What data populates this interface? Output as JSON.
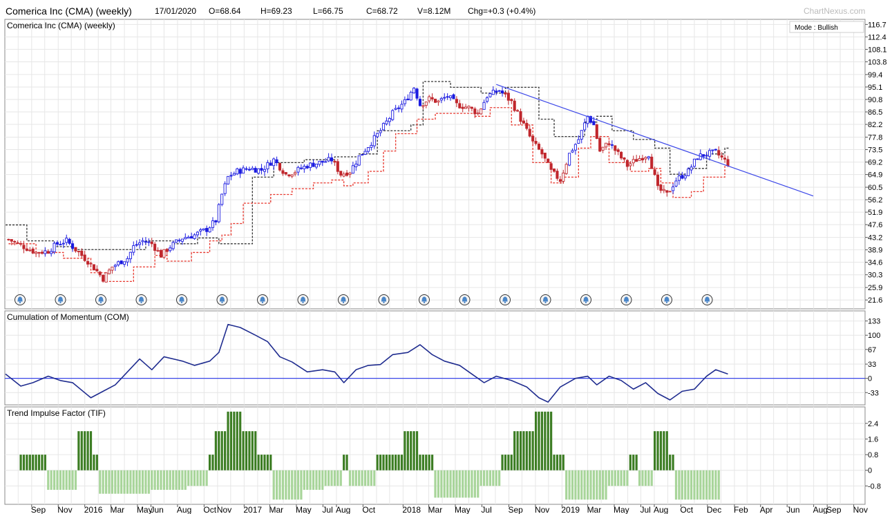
{
  "header": {
    "title": "Comerica Inc (CMA) (weekly)",
    "date": "17/01/2020",
    "open": "O=68.64",
    "high": "H=69.23",
    "low": "L=66.75",
    "close": "C=68.72",
    "volume": "V=8.12M",
    "change": "Chg=+0.3 (+0.4%)",
    "brand": "ChartNexus.com"
  },
  "mode_label": "Mode : Bullish",
  "colors": {
    "up": "#1a1ae0",
    "down": "#c0272d",
    "trendline": "#3a46e8",
    "com_line": "#1f2c8f",
    "tif_pos": "#3c7d23",
    "tif_neg": "#a8d59a",
    "stop_red": "#e8352b",
    "stop_black": "#333333",
    "alert_icon": "#4a86c8"
  },
  "x_axis_labels": [
    "Sep",
    "Nov",
    "2016",
    "Mar",
    "May",
    "Jun",
    "Aug",
    "Oct",
    "Nov",
    "2017",
    "Mar",
    "May",
    "Jul",
    "Aug",
    "Oct",
    "2018",
    "Mar",
    "May",
    "Jul",
    "Sep",
    "Nov",
    "2019",
    "Mar",
    "May",
    "Jul",
    "Aug",
    "Oct",
    "Dec",
    "Feb",
    "Apr",
    "Jun",
    "Aug",
    "Sep",
    "Nov"
  ],
  "alert_icon_count": 18,
  "chart_data": [
    {
      "type": "candlestick",
      "title": "Comerica Inc (CMA) (weekly)",
      "y_ticks": [
        116.7,
        112.4,
        108.1,
        103.8,
        99.4,
        95.1,
        90.8,
        86.5,
        82.2,
        77.8,
        73.5,
        69.2,
        64.9,
        60.5,
        56.2,
        51.9,
        47.6,
        43.2,
        38.9,
        34.6,
        30.3,
        25.9,
        21.6
      ],
      "ylim": [
        19.5,
        117.5
      ],
      "x_range": [
        "2015-07",
        "2020-11"
      ],
      "close_path": [
        [
          "2015-07-10",
          42.5
        ],
        [
          "2015-08-14",
          40
        ],
        [
          "2015-09-11",
          38
        ],
        [
          "2015-10-09",
          38.5
        ],
        [
          "2015-10-30",
          41
        ],
        [
          "2015-11-20",
          42
        ],
        [
          "2015-12-11",
          39
        ],
        [
          "2016-01-08",
          35
        ],
        [
          "2016-01-29",
          31.5
        ],
        [
          "2016-02-12",
          29
        ],
        [
          "2016-03-04",
          33
        ],
        [
          "2016-03-25",
          35
        ],
        [
          "2016-04-08",
          36
        ],
        [
          "2016-04-22",
          40
        ],
        [
          "2016-05-13",
          42
        ],
        [
          "2016-06-03",
          41
        ],
        [
          "2016-06-24",
          37
        ],
        [
          "2016-07-15",
          40
        ],
        [
          "2016-08-12",
          43
        ],
        [
          "2016-09-09",
          44
        ],
        [
          "2016-10-07",
          46
        ],
        [
          "2016-10-28",
          49
        ],
        [
          "2016-11-11",
          58
        ],
        [
          "2016-11-25",
          64
        ],
        [
          "2016-12-16",
          66
        ],
        [
          "2017-01-13",
          67
        ],
        [
          "2017-02-10",
          66.5
        ],
        [
          "2017-03-10",
          70
        ],
        [
          "2017-04-07",
          65
        ],
        [
          "2017-04-28",
          66
        ],
        [
          "2017-05-26",
          68
        ],
        [
          "2017-06-23",
          69
        ],
        [
          "2017-07-21",
          70
        ],
        [
          "2017-08-11",
          65
        ],
        [
          "2017-09-01",
          66
        ],
        [
          "2017-09-22",
          71
        ],
        [
          "2017-10-20",
          76
        ],
        [
          "2017-11-10",
          80
        ],
        [
          "2017-12-08",
          86
        ],
        [
          "2018-01-05",
          90
        ],
        [
          "2018-01-26",
          95
        ],
        [
          "2018-02-09",
          89
        ],
        [
          "2018-03-02",
          91
        ],
        [
          "2018-03-23",
          90
        ],
        [
          "2018-04-13",
          92
        ],
        [
          "2018-05-04",
          89
        ],
        [
          "2018-06-01",
          88
        ],
        [
          "2018-06-22",
          86
        ],
        [
          "2018-07-13",
          92
        ],
        [
          "2018-08-10",
          94
        ],
        [
          "2018-09-07",
          90
        ],
        [
          "2018-10-05",
          82
        ],
        [
          "2018-10-26",
          76
        ],
        [
          "2018-11-16",
          72
        ],
        [
          "2018-12-07",
          66
        ],
        [
          "2018-12-28",
          63
        ],
        [
          "2019-01-18",
          72
        ],
        [
          "2019-02-08",
          77
        ],
        [
          "2019-03-01",
          85
        ],
        [
          "2019-03-15",
          82
        ],
        [
          "2019-03-29",
          73
        ],
        [
          "2019-04-19",
          76
        ],
        [
          "2019-05-10",
          72
        ],
        [
          "2019-05-31",
          68
        ],
        [
          "2019-06-21",
          70
        ],
        [
          "2019-07-19",
          72
        ],
        [
          "2019-08-09",
          60
        ],
        [
          "2019-08-30",
          58
        ],
        [
          "2019-09-20",
          63
        ],
        [
          "2019-10-18",
          66
        ],
        [
          "2019-11-08",
          71
        ],
        [
          "2019-11-29",
          72
        ],
        [
          "2019-12-20",
          72.5
        ],
        [
          "2020-01-17",
          68.72
        ]
      ],
      "stop_red": [
        [
          "2015-07-10",
          41
        ],
        [
          "2015-09-11",
          38
        ],
        [
          "2015-11-13",
          36
        ],
        [
          "2016-01-15",
          31
        ],
        [
          "2016-02-19",
          28
        ],
        [
          "2016-04-22",
          33
        ],
        [
          "2016-06-10",
          37
        ],
        [
          "2016-07-08",
          35
        ],
        [
          "2016-09-02",
          38
        ],
        [
          "2016-10-14",
          42
        ],
        [
          "2016-11-11",
          44
        ],
        [
          "2016-12-02",
          48
        ],
        [
          "2016-12-30",
          55
        ],
        [
          "2017-03-03",
          58
        ],
        [
          "2017-04-21",
          60
        ],
        [
          "2017-06-09",
          62
        ],
        [
          "2017-07-21",
          63
        ],
        [
          "2017-08-18",
          61
        ],
        [
          "2017-09-08",
          62
        ],
        [
          "2017-10-13",
          66
        ],
        [
          "2017-11-17",
          73
        ],
        [
          "2017-12-15",
          79
        ],
        [
          "2018-02-02",
          84
        ],
        [
          "2018-03-16",
          86
        ],
        [
          "2018-06-15",
          85
        ],
        [
          "2018-07-20",
          88
        ],
        [
          "2018-09-07",
          82
        ],
        [
          "2018-10-26",
          69
        ],
        [
          "2018-12-07",
          62
        ],
        [
          "2019-01-04",
          64
        ],
        [
          "2019-02-08",
          74
        ],
        [
          "2019-03-08",
          78
        ],
        [
          "2019-04-19",
          69
        ],
        [
          "2019-06-07",
          66
        ],
        [
          "2019-07-19",
          67
        ],
        [
          "2019-08-16",
          62
        ],
        [
          "2019-09-13",
          57
        ],
        [
          "2019-10-25",
          59
        ],
        [
          "2019-11-22",
          64
        ],
        [
          "2020-01-10",
          68
        ]
      ],
      "stop_black": [
        [
          "2015-07-03",
          47.5
        ],
        [
          "2015-08-21",
          42
        ],
        [
          "2015-10-23",
          40
        ],
        [
          "2015-12-04",
          39
        ],
        [
          "2016-03-11",
          39
        ],
        [
          "2016-05-20",
          42
        ],
        [
          "2016-07-22",
          41
        ],
        [
          "2016-09-16",
          43
        ],
        [
          "2016-11-04",
          41
        ],
        [
          "2017-01-06",
          41
        ],
        [
          "2017-01-20",
          64
        ],
        [
          "2017-03-10",
          69
        ],
        [
          "2017-05-19",
          70
        ],
        [
          "2017-07-28",
          71
        ],
        [
          "2017-09-22",
          72
        ],
        [
          "2017-11-03",
          80
        ],
        [
          "2018-01-19",
          82
        ],
        [
          "2018-02-16",
          97
        ],
        [
          "2018-04-20",
          95
        ],
        [
          "2018-06-29",
          93
        ],
        [
          "2018-08-24",
          95
        ],
        [
          "2018-11-09",
          84
        ],
        [
          "2018-12-14",
          78
        ],
        [
          "2019-02-22",
          83
        ],
        [
          "2019-03-22",
          85
        ],
        [
          "2019-04-26",
          80
        ],
        [
          "2019-06-14",
          77
        ],
        [
          "2019-08-02",
          74
        ],
        [
          "2019-09-06",
          65
        ],
        [
          "2019-10-18",
          67
        ],
        [
          "2019-11-29",
          72
        ],
        [
          "2020-01-10",
          74
        ]
      ],
      "trendline": [
        [
          "2018-08-03",
          96
        ],
        [
          "2020-07-31",
          57.5
        ]
      ]
    },
    {
      "type": "line",
      "title": "Cumulation of Momentum (COM)",
      "y_ticks": [
        133,
        100,
        67,
        33,
        0,
        -33
      ],
      "ylim": [
        -55,
        150
      ],
      "reference_line": 0,
      "points": [
        [
          "2015-07-03",
          10
        ],
        [
          "2015-08-07",
          -18
        ],
        [
          "2015-09-04",
          -10
        ],
        [
          "2015-10-09",
          5
        ],
        [
          "2015-11-06",
          -5
        ],
        [
          "2015-12-04",
          -10
        ],
        [
          "2016-01-15",
          -45
        ],
        [
          "2016-02-12",
          -30
        ],
        [
          "2016-03-11",
          -15
        ],
        [
          "2016-04-08",
          15
        ],
        [
          "2016-05-06",
          45
        ],
        [
          "2016-06-03",
          20
        ],
        [
          "2016-07-01",
          50
        ],
        [
          "2016-08-12",
          40
        ],
        [
          "2016-09-09",
          30
        ],
        [
          "2016-10-14",
          40
        ],
        [
          "2016-11-04",
          60
        ],
        [
          "2016-11-25",
          125
        ],
        [
          "2016-12-23",
          118
        ],
        [
          "2017-01-27",
          100
        ],
        [
          "2017-02-24",
          85
        ],
        [
          "2017-03-24",
          50
        ],
        [
          "2017-04-21",
          38
        ],
        [
          "2017-05-26",
          15
        ],
        [
          "2017-06-30",
          20
        ],
        [
          "2017-07-28",
          15
        ],
        [
          "2017-08-18",
          -10
        ],
        [
          "2017-09-15",
          20
        ],
        [
          "2017-10-13",
          30
        ],
        [
          "2017-11-10",
          32
        ],
        [
          "2017-12-08",
          55
        ],
        [
          "2018-01-12",
          60
        ],
        [
          "2018-02-09",
          78
        ],
        [
          "2018-03-09",
          55
        ],
        [
          "2018-04-06",
          40
        ],
        [
          "2018-05-11",
          30
        ],
        [
          "2018-06-08",
          10
        ],
        [
          "2018-07-06",
          -10
        ],
        [
          "2018-08-03",
          5
        ],
        [
          "2018-09-07",
          -5
        ],
        [
          "2018-10-12",
          -20
        ],
        [
          "2018-11-09",
          -45
        ],
        [
          "2018-11-30",
          -55
        ],
        [
          "2018-12-28",
          -20
        ],
        [
          "2019-02-01",
          0
        ],
        [
          "2019-03-01",
          5
        ],
        [
          "2019-03-22",
          -15
        ],
        [
          "2019-04-19",
          5
        ],
        [
          "2019-05-17",
          -5
        ],
        [
          "2019-06-14",
          -25
        ],
        [
          "2019-07-12",
          -10
        ],
        [
          "2019-08-09",
          -35
        ],
        [
          "2019-09-06",
          -50
        ],
        [
          "2019-10-04",
          -30
        ],
        [
          "2019-11-01",
          -25
        ],
        [
          "2019-11-29",
          5
        ],
        [
          "2019-12-20",
          20
        ],
        [
          "2020-01-17",
          10
        ]
      ]
    },
    {
      "type": "bar",
      "title": "Trend Impulse Factor (TIF)",
      "y_ticks": [
        2.4,
        1.6,
        0.8,
        0.0,
        -0.8
      ],
      "ylim": [
        -1.6,
        3.1
      ],
      "segments": [
        [
          "2015-08-07",
          "2015-10-02",
          0.8
        ],
        [
          "2015-10-09",
          "2015-12-11",
          -1.0
        ],
        [
          "2015-12-18",
          "2016-01-15",
          2.0
        ],
        [
          "2016-01-22",
          "2016-01-29",
          0.8
        ],
        [
          "2016-02-05",
          "2016-05-27",
          -1.2
        ],
        [
          "2016-06-03",
          "2016-08-19",
          -1.0
        ],
        [
          "2016-08-26",
          "2016-10-07",
          -0.8
        ],
        [
          "2016-10-14",
          "2016-10-21",
          0.8
        ],
        [
          "2016-10-28",
          "2016-11-18",
          2.0
        ],
        [
          "2016-11-25",
          "2016-12-23",
          3.0
        ],
        [
          "2016-12-30",
          "2017-01-27",
          2.0
        ],
        [
          "2017-02-03",
          "2017-03-03",
          0.8
        ],
        [
          "2017-03-10",
          "2017-05-12",
          -1.5
        ],
        [
          "2017-05-19",
          "2017-06-30",
          -1.0
        ],
        [
          "2017-07-07",
          "2017-08-11",
          -0.8
        ],
        [
          "2017-08-18",
          "2017-08-25",
          0.8
        ],
        [
          "2017-09-01",
          "2017-10-27",
          -0.8
        ],
        [
          "2017-11-03",
          "2017-12-29",
          0.8
        ],
        [
          "2018-01-05",
          "2018-02-02",
          2.0
        ],
        [
          "2018-02-09",
          "2018-03-09",
          0.8
        ],
        [
          "2018-03-16",
          "2018-06-22",
          -1.4
        ],
        [
          "2018-06-29",
          "2018-08-10",
          -0.8
        ],
        [
          "2018-08-17",
          "2018-09-07",
          0.8
        ],
        [
          "2018-09-14",
          "2018-10-26",
          2.0
        ],
        [
          "2018-11-02",
          "2018-12-07",
          3.0
        ],
        [
          "2018-12-14",
          "2019-01-04",
          0.8
        ],
        [
          "2019-01-11",
          "2019-04-12",
          -1.5
        ],
        [
          "2019-04-19",
          "2019-05-31",
          -0.8
        ],
        [
          "2019-06-07",
          "2019-06-21",
          0.8
        ],
        [
          "2019-06-28",
          "2019-07-26",
          -0.8
        ],
        [
          "2019-08-02",
          "2019-08-30",
          2.0
        ],
        [
          "2019-09-06",
          "2019-09-13",
          0.8
        ],
        [
          "2019-09-20",
          "2019-12-27",
          -1.5
        ]
      ]
    }
  ]
}
